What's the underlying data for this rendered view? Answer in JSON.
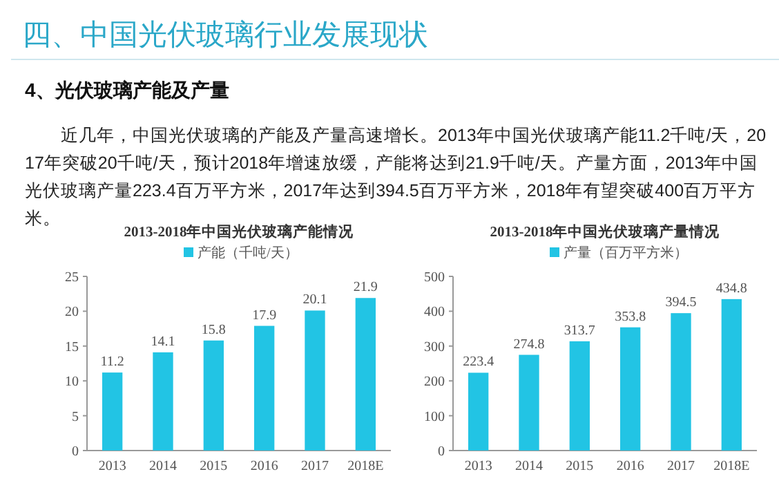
{
  "chart_data": [
    {
      "type": "other",
      "title": "四、中国光伏玻璃行业发展现状",
      "subtitle": "4、光伏玻璃产能及产量",
      "annotations": [
        "近几年，中国光伏玻璃的产能及产量高速增长。2013年中国光伏玻璃产能11.2千吨/天，2017年突破20千吨/天，预计2018年增速放缓，产能将达到21.9千吨/天。产量方面，2013年中国光伏玻璃产量223.4百万平方米，2017年达到394.5百万平方米，2018年有望突破400百万平方米。"
      ]
    },
    {
      "type": "bar",
      "title": "2013-2018年中国光伏玻璃产能情况",
      "categories": [
        "2013",
        "2014",
        "2015",
        "2016",
        "2017",
        "2018E"
      ],
      "series": [
        {
          "name": "产能（千吨/天）",
          "color": "#22c4e4",
          "values": [
            11.2,
            14.1,
            15.8,
            17.9,
            20.1,
            21.9
          ]
        }
      ],
      "ylim": [
        0,
        25
      ],
      "yticks": [
        0,
        5,
        10,
        15,
        20,
        25
      ],
      "data_labels": true,
      "legend": "top",
      "grid": false
    },
    {
      "type": "bar",
      "title": "2013-2018年中国光伏玻璃产量情况",
      "categories": [
        "2013",
        "2014",
        "2015",
        "2016",
        "2017",
        "2018E"
      ],
      "series": [
        {
          "name": "产量（百万平方米）",
          "color": "#22c4e4",
          "values": [
            223.4,
            274.8,
            313.7,
            353.8,
            394.5,
            434.8
          ]
        }
      ],
      "ylim": [
        0,
        500
      ],
      "yticks": [
        0,
        100,
        200,
        300,
        400,
        500
      ],
      "data_labels": true,
      "legend": "top",
      "grid": false
    }
  ]
}
